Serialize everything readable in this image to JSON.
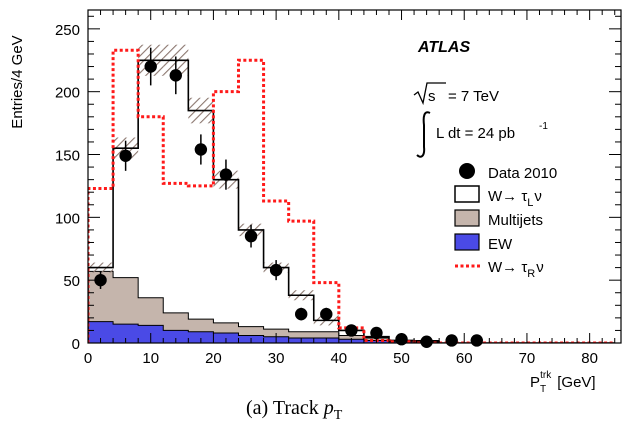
{
  "chart_data": {
    "type": "histogram",
    "ylabel": "Entries/4 GeV",
    "xlabel_main": "P",
    "xlabel_sub": "T",
    "xlabel_sup": "trk",
    "xlabel_unit": "[GeV]",
    "xlim": [
      0,
      85
    ],
    "ylim": [
      0,
      265
    ],
    "xticks": [
      0,
      10,
      20,
      30,
      40,
      50,
      60,
      70,
      80
    ],
    "yticks": [
      0,
      50,
      100,
      150,
      200,
      250
    ],
    "bin_edges": [
      0,
      4,
      8,
      12,
      16,
      20,
      24,
      28,
      32,
      36,
      40,
      44,
      48,
      52,
      56,
      60,
      64,
      68,
      72,
      76,
      80,
      84
    ],
    "annotations": {
      "experiment": "ATLAS",
      "energy_prefix": "s",
      "energy_value": "= 7 TeV",
      "lumi": "L dt = 24 pb",
      "lumi_sup": "-1"
    },
    "legend": {
      "data": "Data 2010",
      "tauL_prefix": "W→ τ",
      "tauL_sub": "L",
      "tauL_suffix": "ν",
      "multijets": "Multijets",
      "ew": "EW",
      "tauR_prefix": "W→ τ",
      "tauR_sub": "R",
      "tauR_suffix": "ν"
    },
    "series": [
      {
        "key": "ew",
        "values": [
          17,
          15,
          14,
          10,
          9,
          8,
          6,
          5,
          4,
          4,
          3,
          2,
          1,
          1,
          0,
          0,
          0,
          0,
          0,
          0,
          0
        ]
      },
      {
        "key": "multijets",
        "values": [
          40,
          37,
          22,
          14,
          10,
          8,
          7,
          6,
          5,
          5,
          3,
          2,
          1,
          1,
          0,
          0,
          0,
          0,
          0,
          0,
          0
        ]
      },
      {
        "key": "tauL_total",
        "values": [
          60,
          155,
          225,
          225,
          185,
          130,
          90,
          60,
          38,
          18,
          10,
          5,
          2,
          1,
          0,
          0,
          0,
          0,
          0,
          0,
          0
        ]
      },
      {
        "key": "tauR",
        "values": [
          123,
          233,
          180,
          127,
          125,
          200,
          225,
          113,
          97,
          48,
          12,
          2,
          1,
          0,
          0,
          0,
          0,
          0,
          0,
          0,
          0
        ]
      }
    ],
    "data_points": {
      "x": [
        2,
        6,
        10,
        14,
        18,
        22,
        26,
        30,
        34,
        38,
        42,
        46,
        50,
        54,
        58,
        62
      ],
      "y": [
        50,
        149,
        220,
        213,
        154,
        134,
        85,
        58,
        23,
        23,
        10,
        8,
        3,
        1,
        2,
        2
      ],
      "err": [
        7,
        12,
        15,
        15,
        12,
        12,
        9,
        8,
        5,
        5,
        3,
        3,
        2,
        1,
        1,
        1
      ]
    },
    "colors": {
      "ew": "#4a4ae6",
      "multijets": "#c5b5ac",
      "tauL_line": "#000000",
      "tauR_line": "#ff1a1a",
      "uncertainty_hatch": "#8c7870"
    },
    "grid": false,
    "legend_position": "right"
  },
  "caption": {
    "prefix": "(a) Track ",
    "var": "p",
    "sub": "T"
  }
}
